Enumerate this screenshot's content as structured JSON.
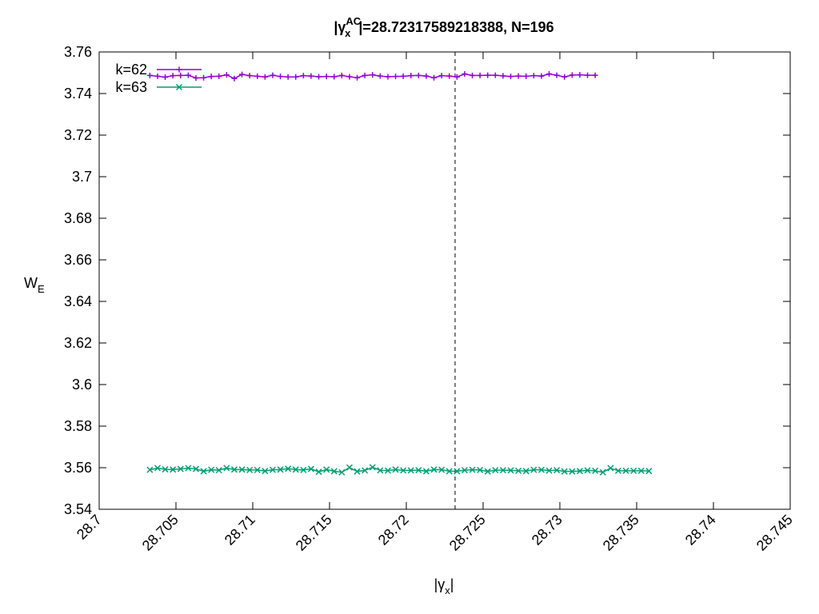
{
  "chart_data": {
    "type": "line",
    "title": {
      "prefix": "|γ",
      "sub": "x",
      "sup": "AC",
      "suffix": "|=28.72317589218388, N=196"
    },
    "xlabel": {
      "prefix": "|γ",
      "sub": "x",
      "suffix": "|"
    },
    "ylabel": {
      "main": "W",
      "sub": "E"
    },
    "xlim": [
      28.7,
      28.745
    ],
    "ylim": [
      3.54,
      3.76
    ],
    "x_ticks": [
      28.7,
      28.705,
      28.71,
      28.715,
      28.72,
      28.725,
      28.73,
      28.735,
      28.74,
      28.745
    ],
    "x_tick_labels": [
      "28.7",
      "28.705",
      "28.71",
      "28.715",
      "28.72",
      "28.725",
      "28.73",
      "28.735",
      "28.74",
      "28.745"
    ],
    "y_ticks": [
      3.54,
      3.56,
      3.58,
      3.6,
      3.62,
      3.64,
      3.66,
      3.68,
      3.7,
      3.72,
      3.74,
      3.76
    ],
    "y_tick_labels": [
      "3.54",
      "3.56",
      "3.58",
      "3.6",
      "3.62",
      "3.64",
      "3.66",
      "3.68",
      "3.7",
      "3.72",
      "3.74",
      "3.76"
    ],
    "vline_x": 28.72317589218388,
    "grid": false,
    "legend_position": "top-left",
    "x_start": 28.7033,
    "x_step": 0.0005,
    "series": [
      {
        "name": "k=62",
        "color": "#9400d3",
        "marker": "plus",
        "values": [
          3.7487,
          3.7483,
          3.7479,
          3.7486,
          3.7487,
          3.7488,
          3.7475,
          3.7476,
          3.7482,
          3.7483,
          3.749,
          3.7472,
          3.7492,
          3.7486,
          3.7483,
          3.748,
          3.7488,
          3.7482,
          3.748,
          3.748,
          3.7486,
          3.7484,
          3.7481,
          3.7482,
          3.7481,
          3.7487,
          3.7481,
          3.7476,
          3.7487,
          3.749,
          3.7484,
          3.7481,
          3.7482,
          3.7483,
          3.7486,
          3.7487,
          3.7484,
          3.7476,
          3.7486,
          3.7484,
          3.748,
          3.7494,
          3.7487,
          3.7487,
          3.7488,
          3.7488,
          3.7485,
          3.7482,
          3.7484,
          3.7483,
          3.7486,
          3.7484,
          3.7494,
          3.7488,
          3.748,
          3.7489,
          3.749,
          3.7488,
          3.7488
        ]
      },
      {
        "name": "k=63",
        "color": "#009e73",
        "marker": "x",
        "values": [
          3.559,
          3.5598,
          3.5592,
          3.5591,
          3.5594,
          3.5598,
          3.5594,
          3.5583,
          3.559,
          3.5588,
          3.5598,
          3.5591,
          3.5591,
          3.5589,
          3.5589,
          3.5584,
          3.559,
          3.5591,
          3.5595,
          3.5591,
          3.5589,
          3.5594,
          3.558,
          3.5591,
          3.5583,
          3.5578,
          3.5601,
          3.5582,
          3.5587,
          3.5602,
          3.5587,
          3.5586,
          3.5591,
          3.5587,
          3.5587,
          3.5588,
          3.5583,
          3.5591,
          3.559,
          3.5583,
          3.5583,
          3.5588,
          3.559,
          3.5589,
          3.5582,
          3.5588,
          3.5588,
          3.5587,
          3.5585,
          3.5584,
          3.559,
          3.559,
          3.5586,
          3.5588,
          3.5582,
          3.5582,
          3.5584,
          3.5587,
          3.5585,
          3.5578,
          3.5598,
          3.5585,
          3.5585,
          3.5585,
          3.5585,
          3.5584
        ]
      }
    ]
  }
}
